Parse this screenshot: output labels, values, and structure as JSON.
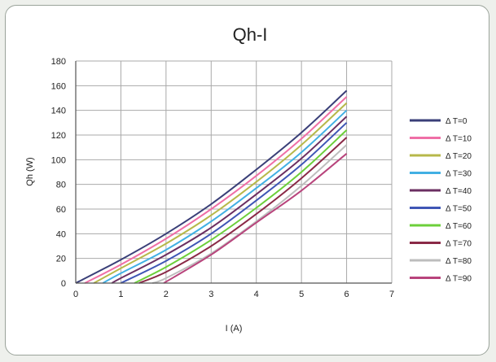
{
  "chart_data": {
    "type": "line",
    "title": "Qh-I",
    "xlabel": "I (A)",
    "ylabel": "Qh (W)",
    "xlim": [
      0,
      7
    ],
    "ylim": [
      0,
      180
    ],
    "xticks": [
      0,
      1,
      2,
      3,
      4,
      5,
      6,
      7
    ],
    "yticks": [
      0,
      20,
      40,
      60,
      80,
      100,
      120,
      140,
      160,
      180
    ],
    "grid": true,
    "legend_position": "right",
    "series": [
      {
        "name": "Δ T=0",
        "color": "#3a3f78",
        "x": [
          0,
          1,
          2,
          3,
          4,
          5,
          6
        ],
        "y": [
          0,
          19,
          40,
          64,
          92,
          122,
          156
        ]
      },
      {
        "name": "Δ T=10",
        "color": "#ef6fa6",
        "x": [
          0.2,
          1,
          2,
          3,
          4,
          5,
          6
        ],
        "y": [
          0,
          15,
          36,
          60,
          87,
          117,
          151
        ]
      },
      {
        "name": "Δ T=20",
        "color": "#b7b84a",
        "x": [
          0.4,
          1,
          2,
          3,
          4,
          5,
          6
        ],
        "y": [
          0,
          12,
          32,
          55,
          82,
          112,
          146
        ]
      },
      {
        "name": "Δ T=30",
        "color": "#42b0e3",
        "x": [
          0.6,
          1,
          2,
          3,
          4,
          5,
          6
        ],
        "y": [
          0,
          8,
          27,
          50,
          77,
          106,
          140
        ]
      },
      {
        "name": "Δ T=40",
        "color": "#6b2f62",
        "x": [
          0.8,
          1,
          2,
          3,
          4,
          5,
          6
        ],
        "y": [
          0,
          4,
          23,
          45,
          72,
          101,
          135
        ]
      },
      {
        "name": "Δ T=50",
        "color": "#3f56b5",
        "x": [
          1.0,
          2,
          3,
          4,
          5,
          6
        ],
        "y": [
          0,
          18,
          40,
          67,
          96,
          130
        ]
      },
      {
        "name": "Δ T=60",
        "color": "#6ccf3a",
        "x": [
          1.3,
          2,
          3,
          4,
          5,
          6
        ],
        "y": [
          0,
          13,
          35,
          61,
          90,
          124
        ]
      },
      {
        "name": "Δ T=70",
        "color": "#8a2a47",
        "x": [
          1.4,
          2,
          3,
          4,
          5,
          6
        ],
        "y": [
          0,
          9,
          30,
          56,
          85,
          118
        ]
      },
      {
        "name": "Δ T=80",
        "color": "#bdbdbd",
        "x": [
          1.7,
          2,
          3,
          4,
          5,
          6
        ],
        "y": [
          0,
          4,
          24,
          50,
          79,
          112
        ]
      },
      {
        "name": "Δ T=90",
        "color": "#b8447c",
        "x": [
          1.95,
          3,
          4,
          5,
          6
        ],
        "y": [
          0,
          23,
          49,
          75,
          105
        ]
      }
    ]
  }
}
